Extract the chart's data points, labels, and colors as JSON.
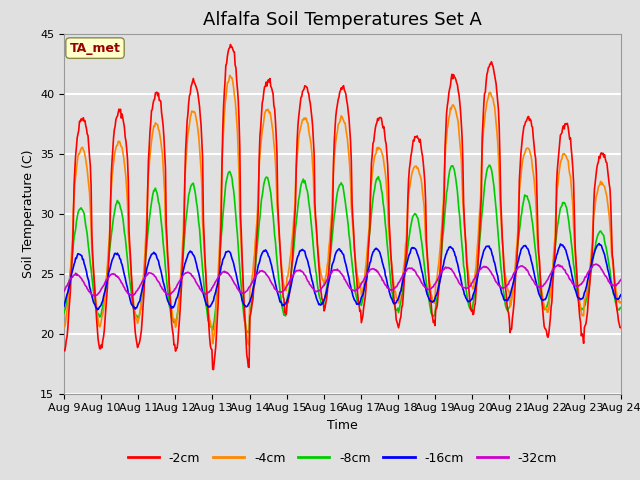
{
  "title": "Alfalfa Soil Temperatures Set A",
  "xlabel": "Time",
  "ylabel": "Soil Temperature (C)",
  "ylim": [
    15,
    45
  ],
  "annotation": "TA_met",
  "series_colors": {
    "-2cm": "#ff0000",
    "-4cm": "#ff8800",
    "-8cm": "#00cc00",
    "-16cm": "#0000ff",
    "-32cm": "#cc00cc"
  },
  "x_tick_labels": [
    "Aug 9",
    "Aug 10",
    "Aug 11",
    "Aug 12",
    "Aug 13",
    "Aug 14",
    "Aug 15",
    "Aug 16",
    "Aug 17",
    "Aug 18",
    "Aug 19",
    "Aug 20",
    "Aug 21",
    "Aug 22",
    "Aug 23",
    "Aug 24"
  ],
  "background_color": "#e0e0e0",
  "plot_bg_color": "#e0e0e0",
  "grid_color": "#ffffff",
  "title_fontsize": 13,
  "legend_fontsize": 9,
  "tick_fontsize": 8,
  "label_fontsize": 9,
  "n_days": 15,
  "pts_per_day": 48,
  "mean_base": 23.5,
  "mean_trend": 0.06,
  "amp_2cm": 10.5,
  "amp_4cm": 7.8,
  "amp_8cm": 5.2,
  "amp_16cm": 2.3,
  "amp_32cm": 0.9,
  "phase_2cm": 0.0,
  "phase_4cm": 0.12,
  "phase_8cm": 0.28,
  "phase_16cm": 0.55,
  "phase_32cm": 1.1,
  "peak_sharpness": 3.0
}
